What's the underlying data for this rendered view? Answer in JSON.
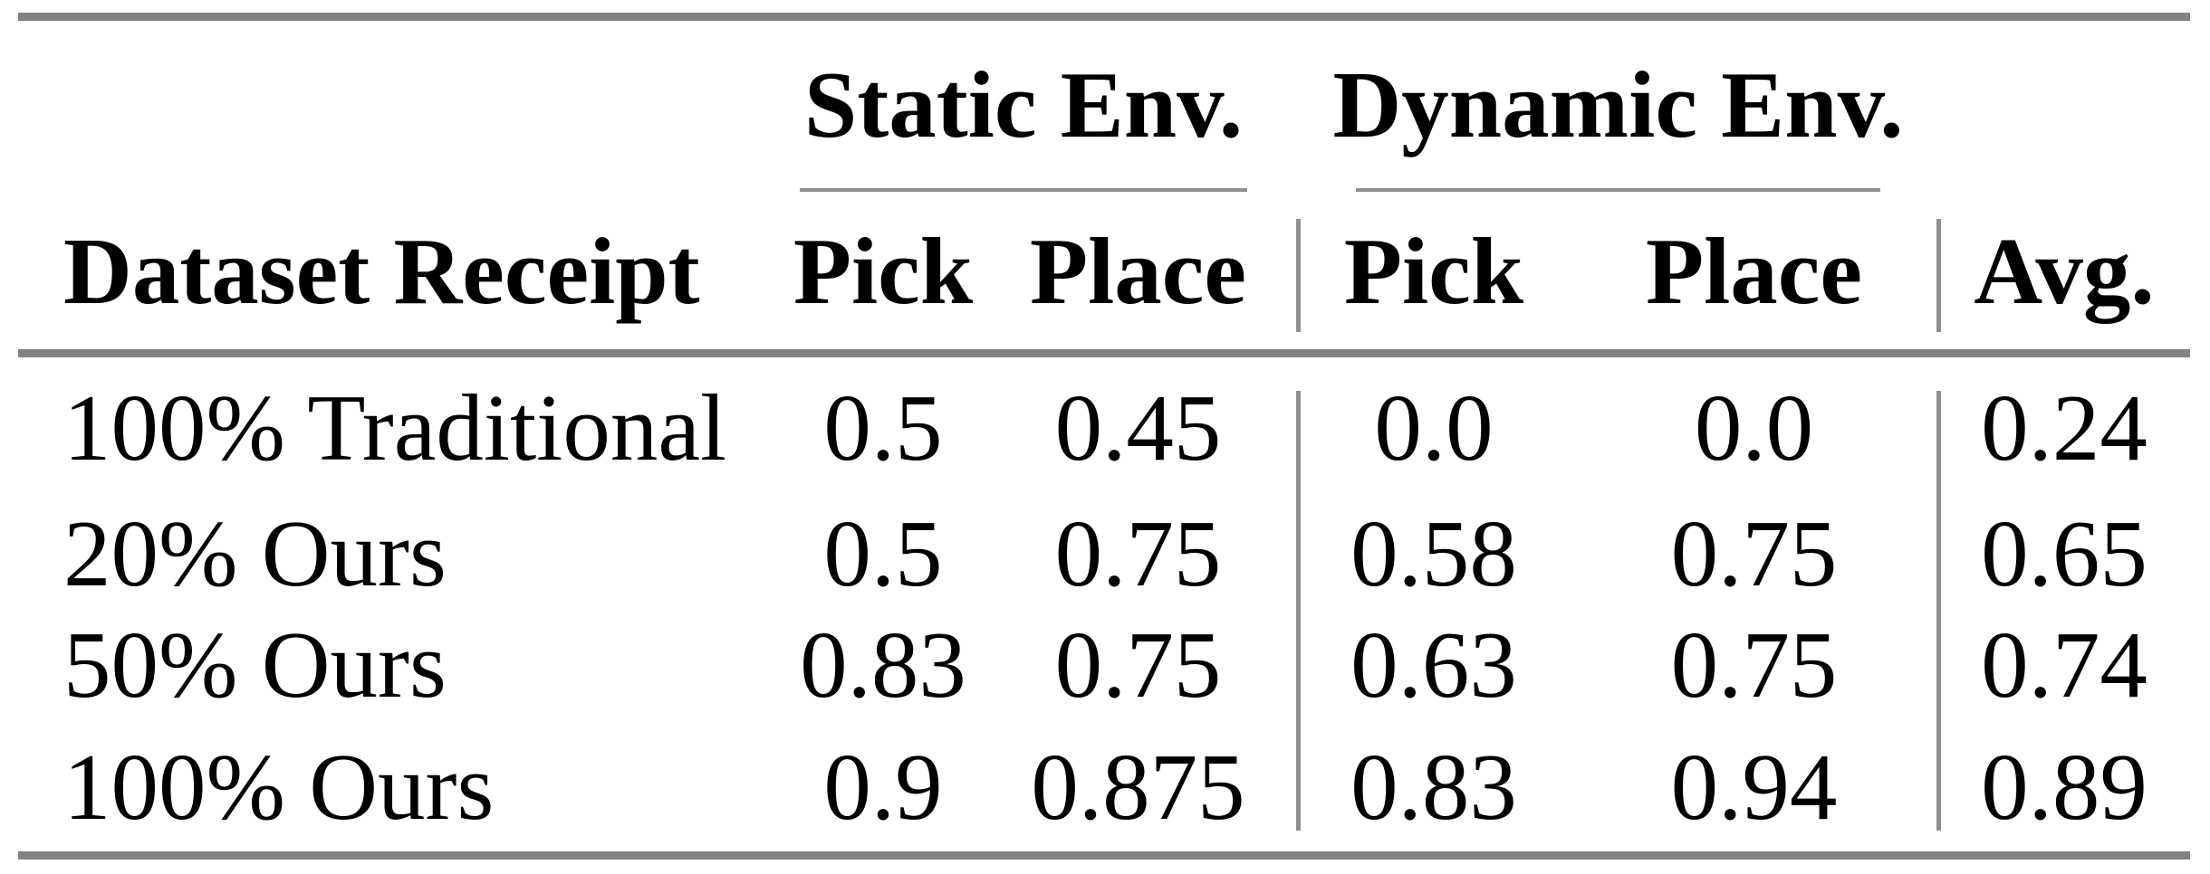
{
  "table": {
    "group_headers": [
      {
        "label": "Static Env."
      },
      {
        "label": "Dynamic Env."
      }
    ],
    "columns": {
      "dataset": "Dataset Receipt",
      "static_pick": "Pick",
      "static_place": "Place",
      "dynamic_pick": "Pick",
      "dynamic_place": "Place",
      "avg": "Avg."
    },
    "rows": [
      {
        "dataset": "100% Traditional",
        "static_pick": "0.5",
        "static_place": "0.45",
        "dynamic_pick": "0.0",
        "dynamic_place": "0.0",
        "avg": "0.24"
      },
      {
        "dataset": "20% Ours",
        "static_pick": "0.5",
        "static_place": "0.75",
        "dynamic_pick": "0.58",
        "dynamic_place": "0.75",
        "avg": "0.65"
      },
      {
        "dataset": "50% Ours",
        "static_pick": "0.83",
        "static_place": "0.75",
        "dynamic_pick": "0.63",
        "dynamic_place": "0.75",
        "avg": "0.74"
      },
      {
        "dataset": "100% Ours",
        "static_pick": "0.9",
        "static_place": "0.875",
        "dynamic_pick": "0.83",
        "dynamic_place": "0.94",
        "avg": "0.89"
      }
    ],
    "colors": {
      "rule_thick": "#828282",
      "rule_thin": "#8f8f8f",
      "text": "#000000",
      "background": "#ffffff"
    }
  },
  "chart_data": {
    "type": "table",
    "title": "",
    "column_groups": [
      "Static Env.",
      "Dynamic Env."
    ],
    "columns": [
      "Dataset Receipt",
      "Static Env. Pick",
      "Static Env. Place",
      "Dynamic Env. Pick",
      "Dynamic Env. Place",
      "Avg."
    ],
    "rows": [
      [
        "100% Traditional",
        0.5,
        0.45,
        0.0,
        0.0,
        0.24
      ],
      [
        "20% Ours",
        0.5,
        0.75,
        0.58,
        0.75,
        0.65
      ],
      [
        "50% Ours",
        0.83,
        0.75,
        0.63,
        0.75,
        0.74
      ],
      [
        "100% Ours",
        0.9,
        0.875,
        0.83,
        0.94,
        0.89
      ]
    ]
  }
}
